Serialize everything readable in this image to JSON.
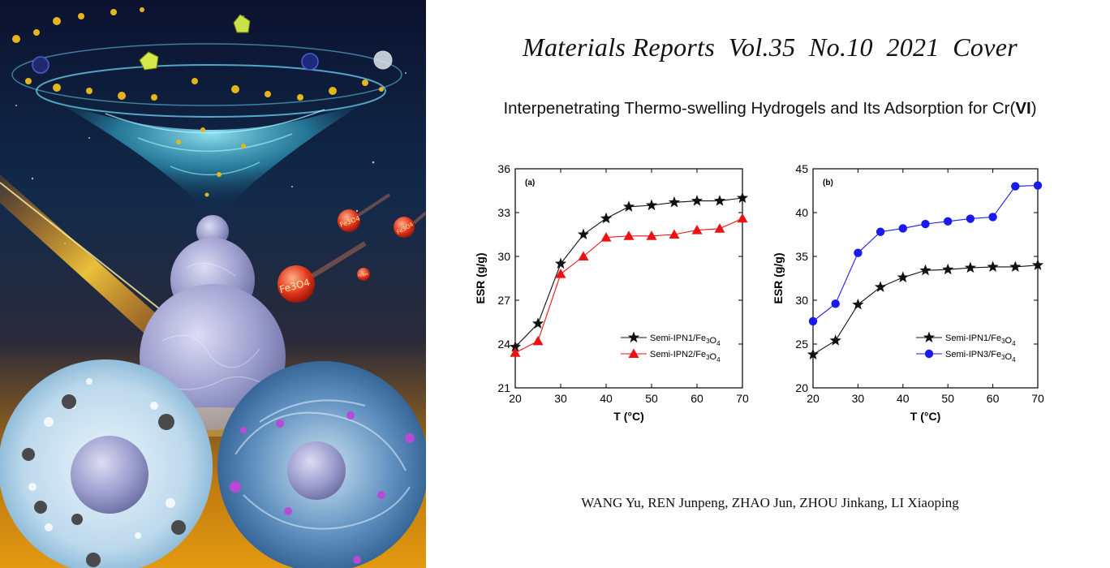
{
  "cover": {
    "title": "Materials Reports  Vol.35  No.10  2021  Cover",
    "subtitle_prefix": "Interpenetrating Thermo-swelling Hydrogels and Its Adsorption for Cr(",
    "subtitle_roman": "VI",
    "subtitle_suffix": ")",
    "authors": "WANG Yu, REN Junpeng, ZHAO Jun, ZHOU Jinkang, LI Xiaoping",
    "art_labels": [
      "Fe3O4",
      "Fe3O4",
      "Fe3O4",
      "Fe3O4"
    ]
  },
  "colors": {
    "series_black": "#111111",
    "series_red": "#ee1111",
    "series_blue": "#1a1aee"
  },
  "chart_data": [
    {
      "type": "line",
      "panel_label": "(a)",
      "xlabel": "T (°C)",
      "ylabel": "ESR (g/g)",
      "xlim": [
        20,
        70
      ],
      "ylim": [
        21,
        36
      ],
      "xticks": [
        20,
        30,
        40,
        50,
        60,
        70
      ],
      "yticks": [
        21,
        24,
        27,
        30,
        33,
        36
      ],
      "legend_position": "bottom-right",
      "x": [
        20,
        25,
        30,
        35,
        40,
        45,
        50,
        55,
        60,
        65,
        70
      ],
      "series": [
        {
          "name": "Semi-IPN1/Fe₃O₄",
          "marker": "star",
          "color": "#111111",
          "values": [
            23.8,
            25.4,
            29.5,
            31.5,
            32.6,
            33.4,
            33.5,
            33.7,
            33.8,
            33.8,
            34.0
          ]
        },
        {
          "name": "Semi-IPN2/Fe₃O₄",
          "marker": "triangle",
          "color": "#ee1111",
          "values": [
            23.4,
            24.2,
            28.8,
            30.0,
            31.3,
            31.4,
            31.4,
            31.5,
            31.8,
            31.9,
            32.6
          ]
        }
      ]
    },
    {
      "type": "line",
      "panel_label": "(b)",
      "xlabel": "T (°C)",
      "ylabel": "ESR (g/g)",
      "xlim": [
        20,
        70
      ],
      "ylim": [
        20,
        45
      ],
      "xticks": [
        20,
        30,
        40,
        50,
        60,
        70
      ],
      "yticks": [
        20,
        25,
        30,
        35,
        40,
        45
      ],
      "legend_position": "bottom-right",
      "x": [
        20,
        25,
        30,
        35,
        40,
        45,
        50,
        55,
        60,
        65,
        70
      ],
      "series": [
        {
          "name": "Semi-IPN1/Fe₃O₄",
          "marker": "star",
          "color": "#111111",
          "values": [
            23.8,
            25.4,
            29.5,
            31.5,
            32.6,
            33.4,
            33.5,
            33.7,
            33.8,
            33.8,
            34.0
          ]
        },
        {
          "name": "Semi-IPN3/Fe₃O₄",
          "marker": "circle",
          "color": "#1a1aee",
          "values": [
            27.6,
            29.6,
            35.4,
            37.8,
            38.2,
            38.7,
            39.0,
            39.3,
            39.5,
            43.0,
            43.1
          ]
        }
      ]
    }
  ]
}
